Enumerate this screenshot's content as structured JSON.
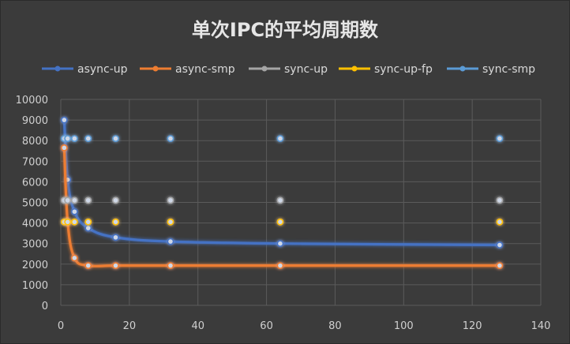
{
  "chart_data": {
    "type": "scatter",
    "title": "单次IPC的平均周期数",
    "xlabel": "",
    "ylabel": "",
    "xlim": [
      0,
      140
    ],
    "ylim": [
      0,
      10000
    ],
    "xticks": [
      "0",
      "20",
      "40",
      "60",
      "80",
      "100",
      "120",
      "140"
    ],
    "yticks": [
      "0",
      "1000",
      "2000",
      "3000",
      "4000",
      "5000",
      "6000",
      "7000",
      "8000",
      "9000",
      "10000"
    ],
    "grid": true,
    "legend_position": "top",
    "series": [
      {
        "name": "async-up",
        "color": "#4472c4",
        "x": [
          1,
          2,
          4,
          8,
          16,
          32,
          64,
          128
        ],
        "y": [
          9000,
          6100,
          4550,
          3750,
          3300,
          3100,
          3000,
          2930
        ]
      },
      {
        "name": "async-smp",
        "color": "#ed7d31",
        "x": [
          1,
          2,
          4,
          8,
          16,
          32,
          64,
          128
        ],
        "y": [
          7650,
          4050,
          2300,
          1930,
          1930,
          1930,
          1930,
          1930
        ]
      },
      {
        "name": "sync-up",
        "color": "#a5a5a5",
        "x": [
          1,
          2,
          4,
          8,
          16,
          32,
          64,
          128
        ],
        "y": [
          5100,
          5100,
          5100,
          5100,
          5100,
          5100,
          5100,
          5100
        ]
      },
      {
        "name": "sync-up-fp",
        "color": "#ffc000",
        "x": [
          1,
          2,
          4,
          8,
          16,
          32,
          64,
          128
        ],
        "y": [
          4050,
          4050,
          4050,
          4050,
          4050,
          4050,
          4050,
          4050
        ]
      },
      {
        "name": "sync-smp",
        "color": "#5b9bd5",
        "x": [
          1,
          2,
          4,
          8,
          16,
          32,
          64,
          128
        ],
        "y": [
          8100,
          8100,
          8100,
          8100,
          8100,
          8100,
          8100,
          8100
        ]
      }
    ]
  }
}
